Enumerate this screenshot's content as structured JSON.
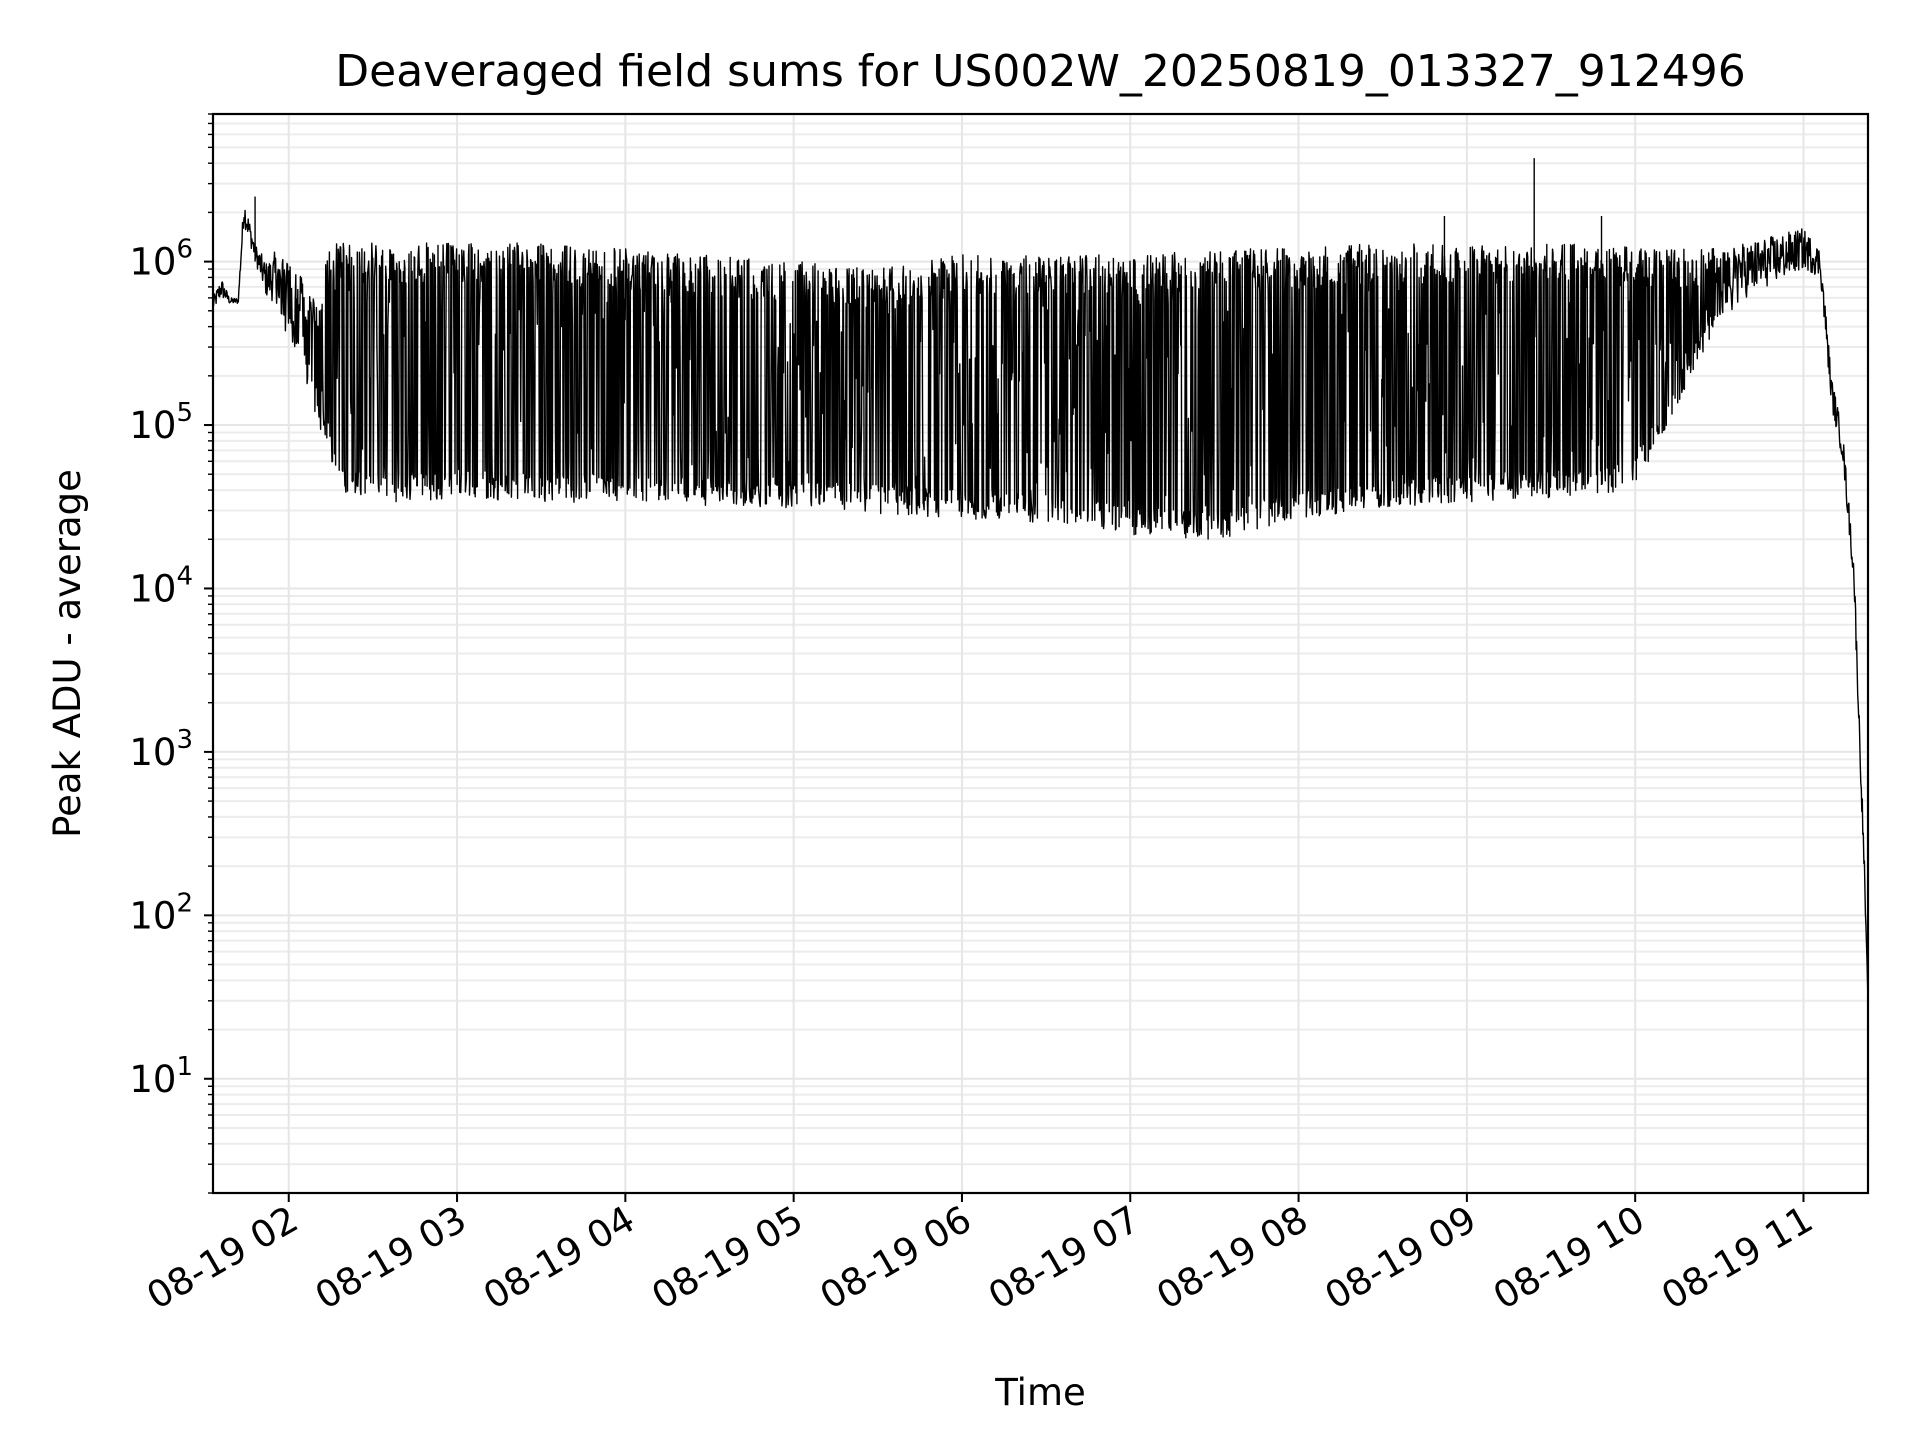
{
  "chart_data": {
    "type": "line",
    "title": "Deaveraged field sums for US002W_20250819_013327_912496",
    "xlabel": "Time",
    "ylabel": "Peak ADU - average",
    "x_axis": {
      "kind": "time",
      "xlim": [
        "2025-08-19T01:33:00",
        "2025-08-19T11:23:00"
      ],
      "ticks": [
        {
          "value": "2025-08-19T02:00:00",
          "label": "08-19 02"
        },
        {
          "value": "2025-08-19T03:00:00",
          "label": "08-19 03"
        },
        {
          "value": "2025-08-19T04:00:00",
          "label": "08-19 04"
        },
        {
          "value": "2025-08-19T05:00:00",
          "label": "08-19 05"
        },
        {
          "value": "2025-08-19T06:00:00",
          "label": "08-19 06"
        },
        {
          "value": "2025-08-19T07:00:00",
          "label": "08-19 07"
        },
        {
          "value": "2025-08-19T08:00:00",
          "label": "08-19 08"
        },
        {
          "value": "2025-08-19T09:00:00",
          "label": "08-19 09"
        },
        {
          "value": "2025-08-19T10:00:00",
          "label": "08-19 10"
        },
        {
          "value": "2025-08-19T11:00:00",
          "label": "08-19 11"
        }
      ]
    },
    "y_axis": {
      "scale": "log",
      "ylim": [
        2,
        8000000
      ],
      "ticks": [
        {
          "value": 10,
          "base": "10",
          "exp": "1"
        },
        {
          "value": 100,
          "base": "10",
          "exp": "2"
        },
        {
          "value": 1000,
          "base": "10",
          "exp": "3"
        },
        {
          "value": 10000,
          "base": "10",
          "exp": "4"
        },
        {
          "value": 100000,
          "base": "10",
          "exp": "5"
        },
        {
          "value": 1000000,
          "base": "10",
          "exp": "6"
        }
      ]
    },
    "grid": {
      "major": true,
      "minor": true
    },
    "legend": "none",
    "series": [
      {
        "color": "#000000",
        "x": [
          "2025-08-19T01:33:00",
          "2025-08-19T01:36:00",
          "2025-08-19T01:39:00",
          "2025-08-19T01:42:00",
          "2025-08-19T01:44:00",
          "2025-08-19T01:48:00",
          "2025-08-19T01:52:00",
          "2025-08-19T01:56:00",
          "2025-08-19T02:00:00",
          "2025-08-19T02:05:00",
          "2025-08-19T02:10:00",
          "2025-08-19T02:15:00",
          "2025-08-19T02:18:00",
          "2025-08-19T02:25:00",
          "2025-08-19T02:35:00",
          "2025-08-19T02:45:00",
          "2025-08-19T03:00:00",
          "2025-08-19T03:30:00",
          "2025-08-19T04:00:00",
          "2025-08-19T04:30:00",
          "2025-08-19T05:00:00",
          "2025-08-19T05:30:00",
          "2025-08-19T06:00:00",
          "2025-08-19T06:30:00",
          "2025-08-19T07:00:00",
          "2025-08-19T07:30:00",
          "2025-08-19T08:00:00",
          "2025-08-19T08:30:00",
          "2025-08-19T09:00:00",
          "2025-08-19T09:30:00",
          "2025-08-19T10:00:00",
          "2025-08-19T10:30:00",
          "2025-08-19T11:00:00",
          "2025-08-19T11:06:00",
          "2025-08-19T11:10:00",
          "2025-08-19T11:14:00",
          "2025-08-19T11:18:00",
          "2025-08-19T11:20:00",
          "2025-08-19T11:21:30",
          "2025-08-19T11:23:00"
        ],
        "y": [
          500000,
          600000,
          550000,
          550000,
          1700000,
          1000000,
          600000,
          550000,
          350000,
          250000,
          120000,
          70000,
          45000,
          40000,
          38000,
          38000,
          40000,
          38000,
          37000,
          36000,
          35000,
          32000,
          30000,
          28000,
          24000,
          22000,
          30000,
          35000,
          38000,
          40000,
          45000,
          500000,
          900000,
          800000,
          130000,
          60000,
          10000,
          1000,
          200,
          30
        ],
        "band_upper": [
          600000,
          800000,
          600000,
          600000,
          2500000,
          1300000,
          1000000,
          1200000,
          1000000,
          800000,
          600000,
          1300000,
          1300000,
          1300000,
          1300000,
          1300000,
          1300000,
          1300000,
          1200000,
          1100000,
          1000000,
          950000,
          1100000,
          1100000,
          1100000,
          1200000,
          1200000,
          1300000,
          1300000,
          1300000,
          1250000,
          1200000,
          1600000,
          1200000,
          200000,
          90000,
          15000,
          1500,
          300,
          30
        ],
        "spikes": [
          {
            "x": "2025-08-19T01:48:00",
            "y": 2500000
          },
          {
            "x": "2025-08-19T08:52:00",
            "y": 1900000
          },
          {
            "x": "2025-08-19T09:24:00",
            "y": 4300000
          },
          {
            "x": "2025-08-19T09:48:00",
            "y": 1900000
          }
        ]
      }
    ]
  }
}
